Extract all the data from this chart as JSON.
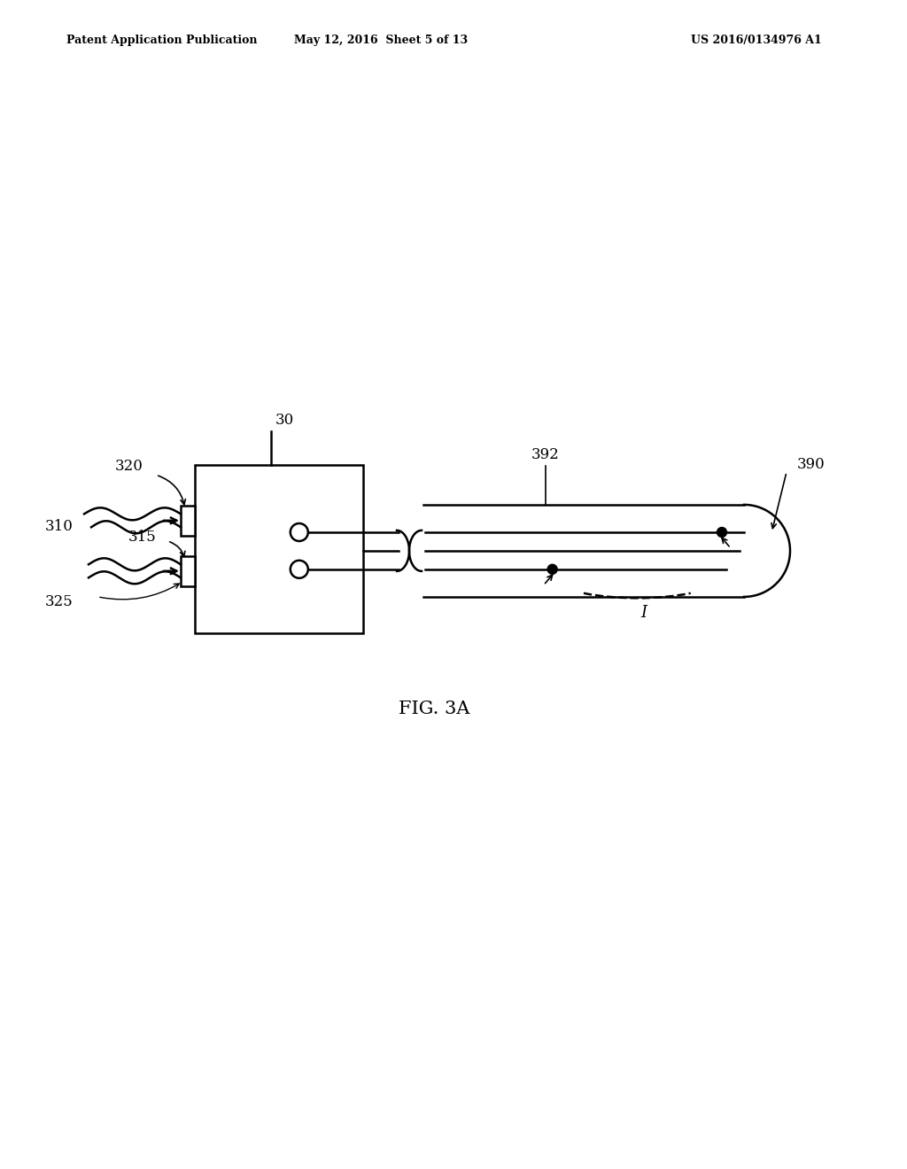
{
  "bg_color": "#ffffff",
  "line_color": "#000000",
  "header_left": "Patent Application Publication",
  "header_mid": "May 12, 2016  Sheet 5 of 13",
  "header_right": "US 2016/0134976 A1",
  "fig_label": "FIG. 3A",
  "label_30": "30",
  "label_320": "320",
  "label_310": "310",
  "label_315": "315",
  "label_325": "325",
  "label_390": "390",
  "label_392": "392",
  "label_I": "I"
}
